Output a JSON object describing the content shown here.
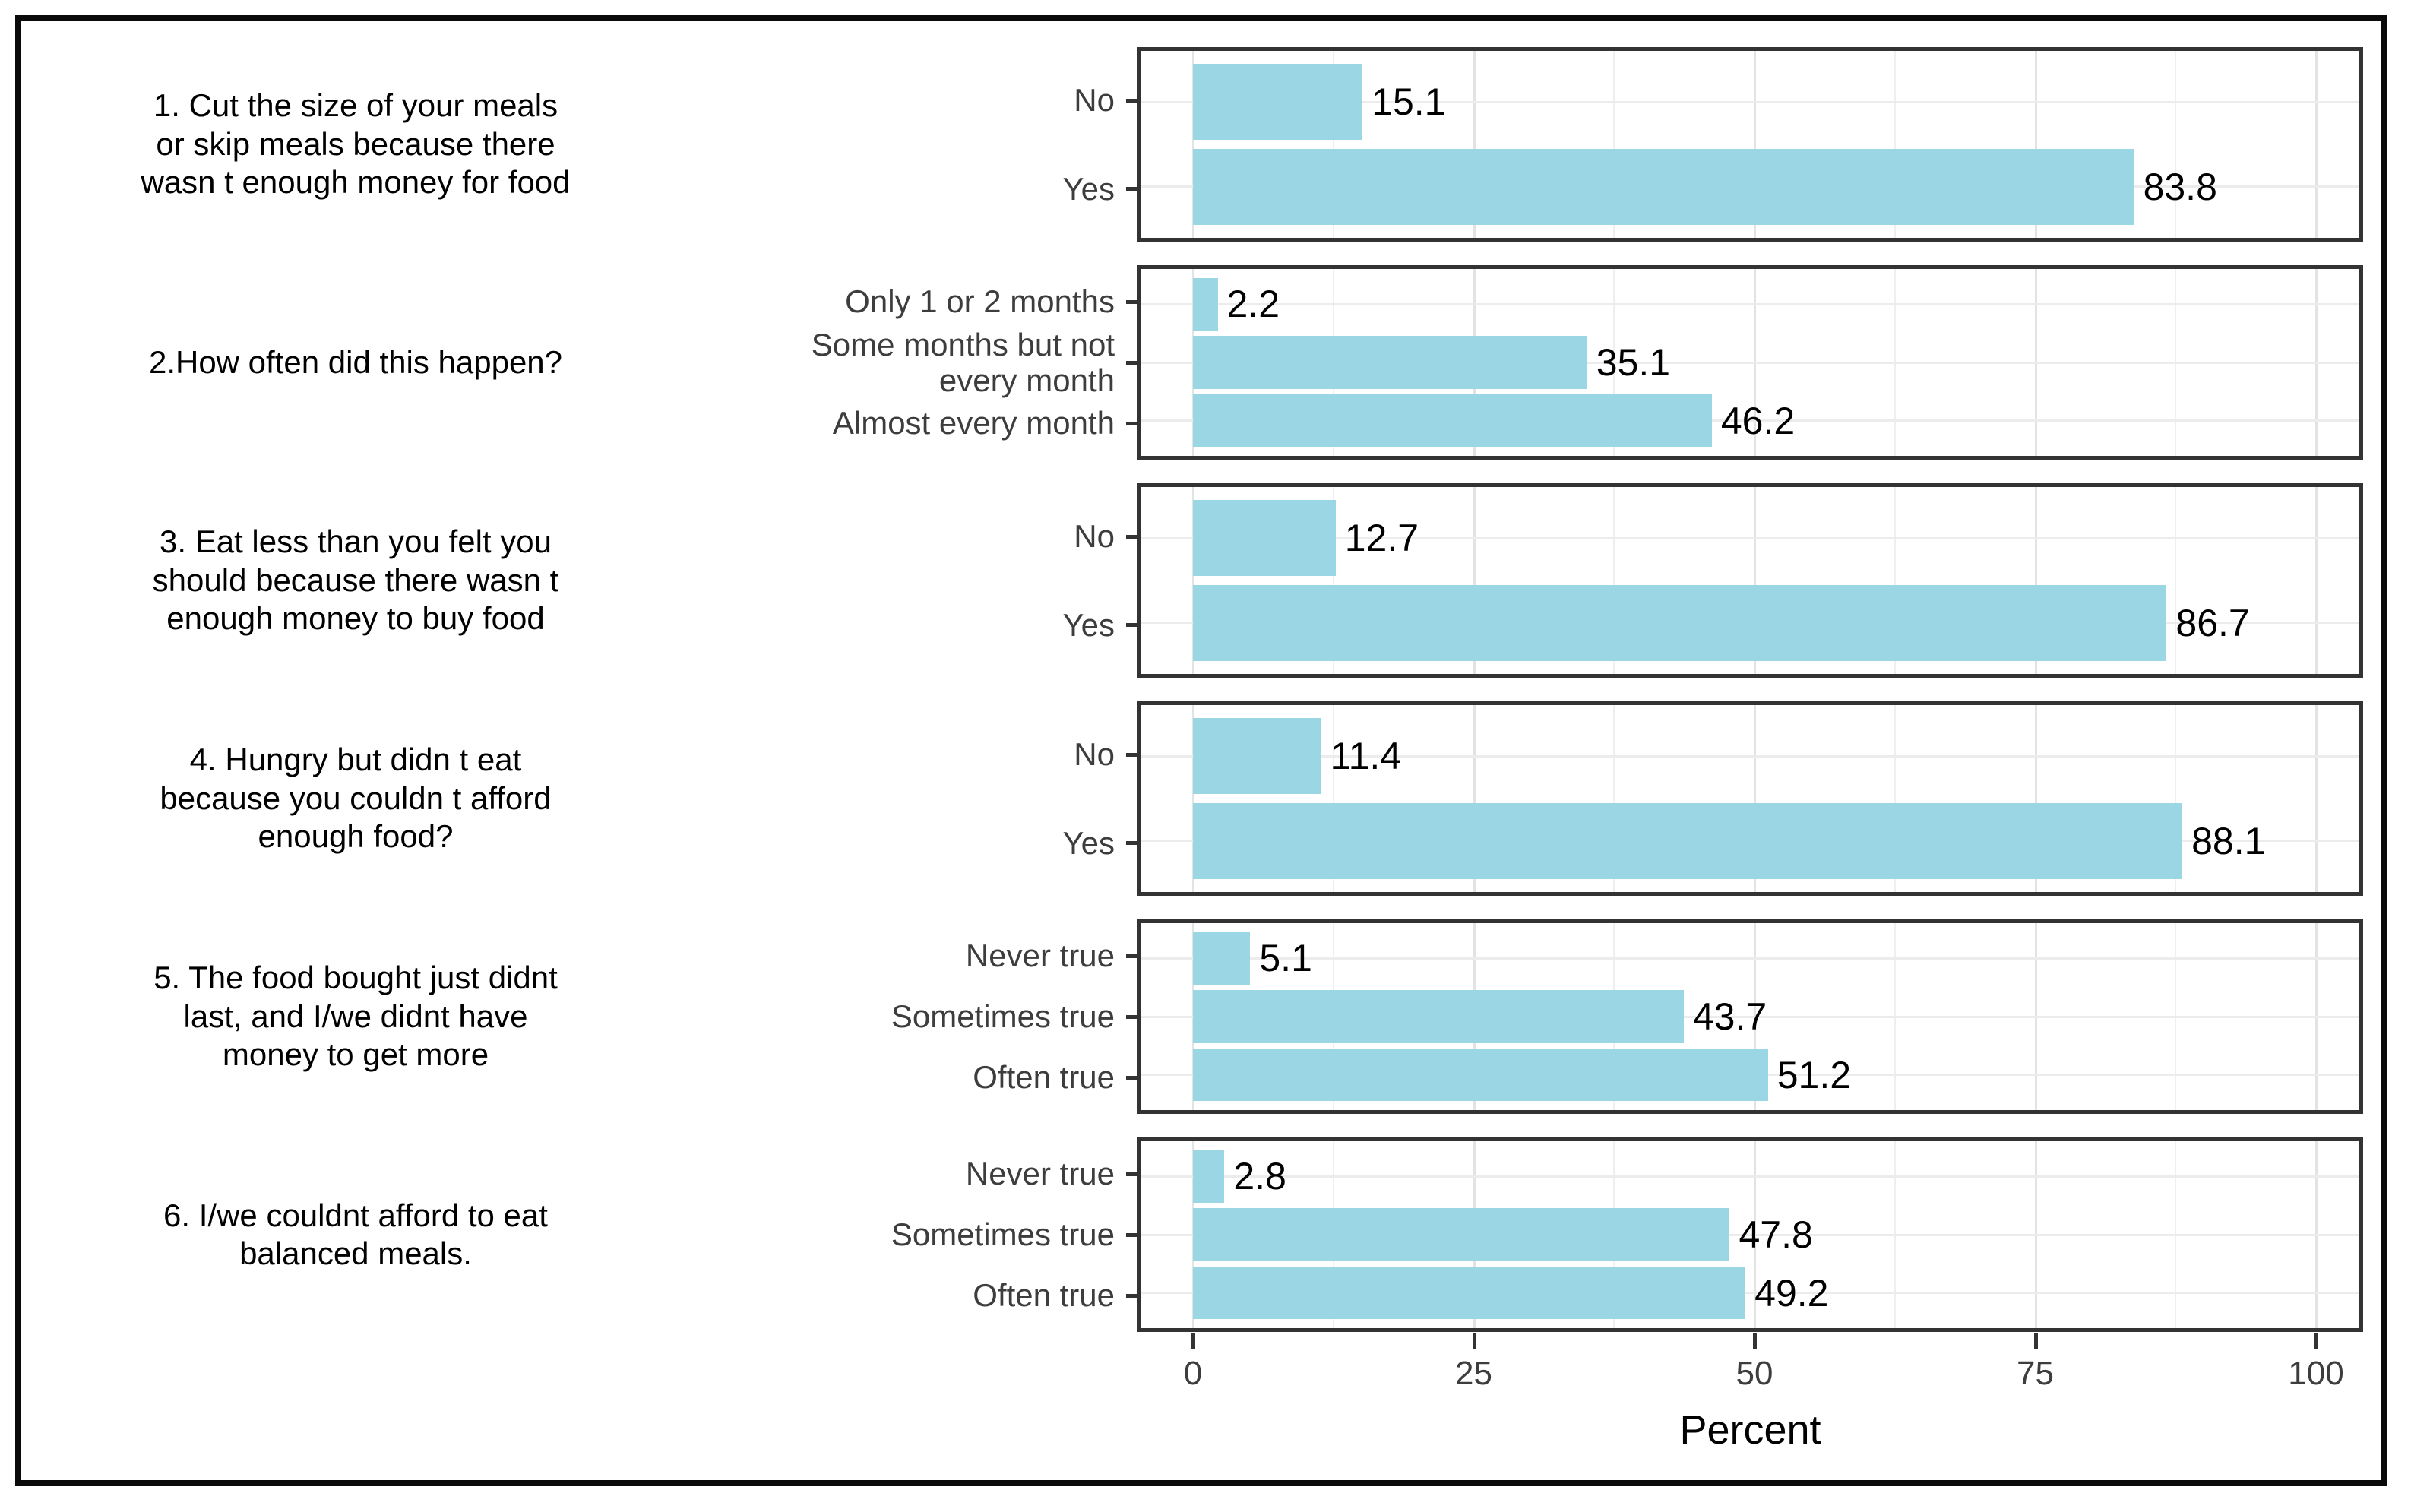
{
  "chart_data": {
    "type": "bar",
    "orientation": "horizontal",
    "xlabel": "Percent",
    "xlim": [
      0,
      100
    ],
    "x_ticks": [
      0,
      25,
      50,
      75,
      100
    ],
    "grid": true,
    "value_labels": true,
    "legend": "none",
    "bar_color": "#9ad6e3",
    "panel_border_color": "#333333",
    "outer_border_color": "#0a0a0a",
    "facets": [
      {
        "label": "1. Cut the size of your meals\nor skip meals because there\nwasn t enough money for food",
        "categories": [
          "No",
          "Yes"
        ],
        "values": [
          15.1,
          83.8
        ]
      },
      {
        "label": "2.How often did this happen?",
        "categories": [
          "Only 1 or 2 months",
          "Some months but not\nevery month",
          "Almost every month"
        ],
        "values": [
          2.2,
          35.1,
          46.2
        ]
      },
      {
        "label": "3. Eat less than you felt you\nshould because there wasn t\nenough money to buy food",
        "categories": [
          "No",
          "Yes"
        ],
        "values": [
          12.7,
          86.7
        ]
      },
      {
        "label": "4. Hungry but didn t eat\nbecause you couldn t afford\nenough food?",
        "categories": [
          "No",
          "Yes"
        ],
        "values": [
          11.4,
          88.1
        ]
      },
      {
        "label": "5. The food bought just didnt\nlast, and I/we didnt have\nmoney to get more",
        "categories": [
          "Never true",
          "Sometimes true",
          "Often true"
        ],
        "values": [
          5.1,
          43.7,
          51.2
        ]
      },
      {
        "label": "6. I/we couldnt afford to eat\nbalanced meals.",
        "categories": [
          "Never true",
          "Sometimes true",
          "Often true"
        ],
        "values": [
          2.8,
          47.8,
          49.2
        ]
      }
    ]
  }
}
